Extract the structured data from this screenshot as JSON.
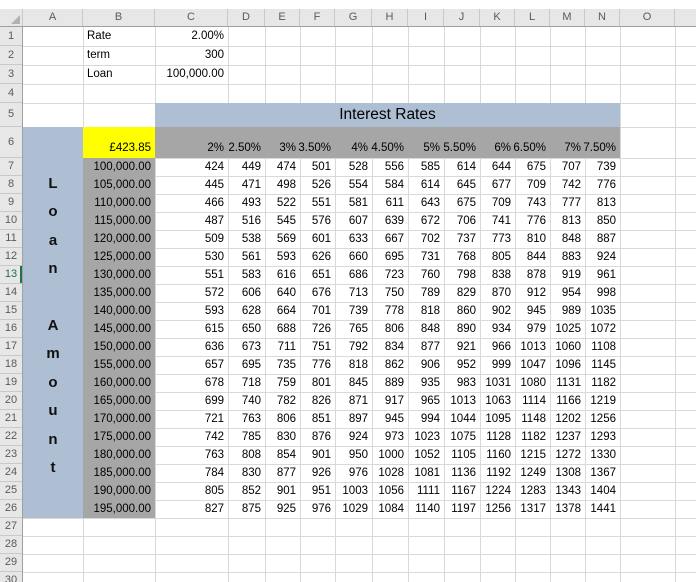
{
  "sheet": {
    "column_headers": [
      "A",
      "B",
      "C",
      "D",
      "E",
      "F",
      "G",
      "H",
      "I",
      "J",
      "K",
      "L",
      "M",
      "N",
      "O"
    ],
    "row_headers": [
      "1",
      "2",
      "3",
      "4",
      "5",
      "6",
      "7",
      "8",
      "9",
      "10",
      "11",
      "12",
      "13",
      "14",
      "15",
      "16",
      "17",
      "18",
      "19",
      "20",
      "21",
      "22",
      "23",
      "24",
      "25",
      "26",
      "27",
      "28",
      "29",
      "30"
    ],
    "active_row": "13"
  },
  "inputs": {
    "rate_label": "Rate",
    "rate_value": "2.00%",
    "term_label": "term",
    "term_value": "300",
    "loan_label": "Loan",
    "loan_value": "100,000.00",
    "payment_value": "£423.85"
  },
  "table": {
    "title": "Interest Rates",
    "side_title": "Loan Amount",
    "rates": [
      "2%",
      "2.50%",
      "3%",
      "3.50%",
      "4%",
      "4.50%",
      "5%",
      "5.50%",
      "6%",
      "6.50%",
      "7%",
      "7.50%"
    ],
    "rows": [
      {
        "amount": "100,000.00",
        "values": [
          "424",
          "449",
          "474",
          "501",
          "528",
          "556",
          "585",
          "614",
          "644",
          "675",
          "707",
          "739"
        ]
      },
      {
        "amount": "105,000.00",
        "values": [
          "445",
          "471",
          "498",
          "526",
          "554",
          "584",
          "614",
          "645",
          "677",
          "709",
          "742",
          "776"
        ]
      },
      {
        "amount": "110,000.00",
        "values": [
          "466",
          "493",
          "522",
          "551",
          "581",
          "611",
          "643",
          "675",
          "709",
          "743",
          "777",
          "813"
        ]
      },
      {
        "amount": "115,000.00",
        "values": [
          "487",
          "516",
          "545",
          "576",
          "607",
          "639",
          "672",
          "706",
          "741",
          "776",
          "813",
          "850"
        ]
      },
      {
        "amount": "120,000.00",
        "values": [
          "509",
          "538",
          "569",
          "601",
          "633",
          "667",
          "702",
          "737",
          "773",
          "810",
          "848",
          "887"
        ]
      },
      {
        "amount": "125,000.00",
        "values": [
          "530",
          "561",
          "593",
          "626",
          "660",
          "695",
          "731",
          "768",
          "805",
          "844",
          "883",
          "924"
        ]
      },
      {
        "amount": "130,000.00",
        "values": [
          "551",
          "583",
          "616",
          "651",
          "686",
          "723",
          "760",
          "798",
          "838",
          "878",
          "919",
          "961"
        ]
      },
      {
        "amount": "135,000.00",
        "values": [
          "572",
          "606",
          "640",
          "676",
          "713",
          "750",
          "789",
          "829",
          "870",
          "912",
          "954",
          "998"
        ]
      },
      {
        "amount": "140,000.00",
        "values": [
          "593",
          "628",
          "664",
          "701",
          "739",
          "778",
          "818",
          "860",
          "902",
          "945",
          "989",
          "1035"
        ]
      },
      {
        "amount": "145,000.00",
        "values": [
          "615",
          "650",
          "688",
          "726",
          "765",
          "806",
          "848",
          "890",
          "934",
          "979",
          "1025",
          "1072"
        ]
      },
      {
        "amount": "150,000.00",
        "values": [
          "636",
          "673",
          "711",
          "751",
          "792",
          "834",
          "877",
          "921",
          "966",
          "1013",
          "1060",
          "1108"
        ]
      },
      {
        "amount": "155,000.00",
        "values": [
          "657",
          "695",
          "735",
          "776",
          "818",
          "862",
          "906",
          "952",
          "999",
          "1047",
          "1096",
          "1145"
        ]
      },
      {
        "amount": "160,000.00",
        "values": [
          "678",
          "718",
          "759",
          "801",
          "845",
          "889",
          "935",
          "983",
          "1031",
          "1080",
          "1131",
          "1182"
        ]
      },
      {
        "amount": "165,000.00",
        "values": [
          "699",
          "740",
          "782",
          "826",
          "871",
          "917",
          "965",
          "1013",
          "1063",
          "1114",
          "1166",
          "1219"
        ]
      },
      {
        "amount": "170,000.00",
        "values": [
          "721",
          "763",
          "806",
          "851",
          "897",
          "945",
          "994",
          "1044",
          "1095",
          "1148",
          "1202",
          "1256"
        ]
      },
      {
        "amount": "175,000.00",
        "values": [
          "742",
          "785",
          "830",
          "876",
          "924",
          "973",
          "1023",
          "1075",
          "1128",
          "1182",
          "1237",
          "1293"
        ]
      },
      {
        "amount": "180,000.00",
        "values": [
          "763",
          "808",
          "854",
          "901",
          "950",
          "1000",
          "1052",
          "1105",
          "1160",
          "1215",
          "1272",
          "1330"
        ]
      },
      {
        "amount": "185,000.00",
        "values": [
          "784",
          "830",
          "877",
          "926",
          "976",
          "1028",
          "1081",
          "1136",
          "1192",
          "1249",
          "1308",
          "1367"
        ]
      },
      {
        "amount": "190,000.00",
        "values": [
          "805",
          "852",
          "901",
          "951",
          "1003",
          "1056",
          "1111",
          "1167",
          "1224",
          "1283",
          "1343",
          "1404"
        ]
      },
      {
        "amount": "195,000.00",
        "values": [
          "827",
          "875",
          "925",
          "976",
          "1029",
          "1084",
          "1140",
          "1197",
          "1256",
          "1317",
          "1378",
          "1441"
        ]
      }
    ]
  },
  "colors": {
    "band_blue": "#aebfd4",
    "band_gray": "#a6a6a6",
    "highlight_yellow": "#ffff00",
    "active_green": "#1e7346",
    "header_bg": "#e7e7e7",
    "gridline": "#d9d9d9"
  }
}
